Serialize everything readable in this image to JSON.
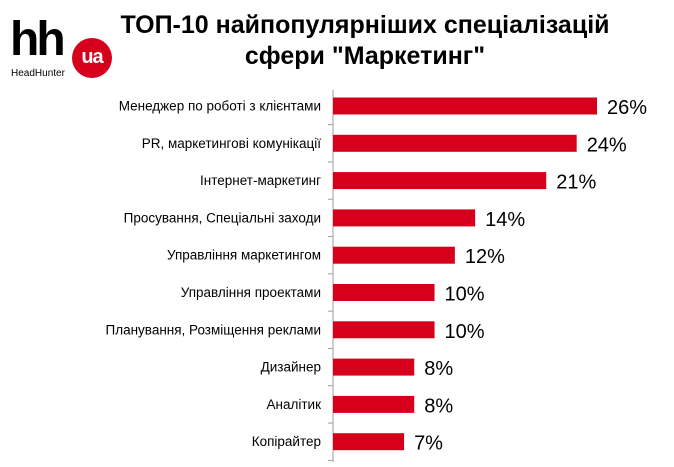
{
  "logo": {
    "mark": "hh",
    "badge": "ua",
    "subtitle": "HeadHunter"
  },
  "chart_data": {
    "type": "bar",
    "orientation": "horizontal",
    "title_lines": [
      "ТОП-10 найпопулярніших спеціалізацій",
      "сфери \"Маркетинг\""
    ],
    "categories": [
      "Менеджер по роботі з клієнтами",
      "PR, маркетингові комунікації",
      "Інтернет-маркетинг",
      "Просування, Спеціальні заходи",
      "Управління маркетингом",
      "Управління проектами",
      "Планування, Розміщення реклами",
      "Дизайнер",
      "Аналітик",
      "Копірайтер"
    ],
    "values": [
      26,
      24,
      21,
      14,
      12,
      10,
      10,
      8,
      8,
      7
    ],
    "value_labels": [
      "26%",
      "24%",
      "21%",
      "14%",
      "12%",
      "10%",
      "10%",
      "8%",
      "8%",
      "7%"
    ],
    "unit": "%",
    "xlim": [
      0,
      26
    ],
    "grid": false,
    "legend": "none",
    "bar_color": "#d6001c",
    "axis_color": "#9e9e9e"
  }
}
